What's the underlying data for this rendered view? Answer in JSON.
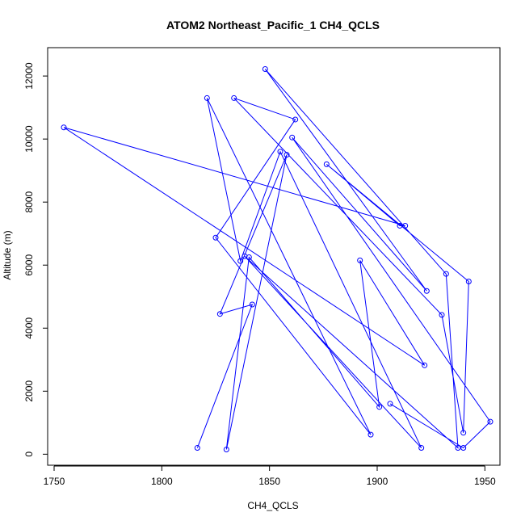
{
  "chart_data": {
    "type": "line",
    "title": "ATOM2 Northeast_Pacific_1 CH4_QCLS",
    "xlabel": "CH4_QCLS",
    "ylabel": "Altitude (m)",
    "xlim": [
      1747,
      1957
    ],
    "ylim": [
      -350,
      12900
    ],
    "xticks": [
      1750,
      1800,
      1850,
      1900,
      1950
    ],
    "yticks": [
      0,
      2000,
      4000,
      6000,
      8000,
      10000,
      12000
    ],
    "grid": false,
    "color": "#0000ff",
    "x": [
      1816.5,
      1842,
      1827,
      1858,
      1830,
      1840.5,
      1901,
      1892,
      1922,
      1754.5,
      1913,
      1910.5,
      1876.5,
      1942.5,
      1940,
      1930,
      1833.5,
      1862,
      1825,
      1897,
      1821,
      1836.5,
      1855,
      1920.5,
      1838.5,
      1937.5,
      1932,
      1848,
      1923,
      1860.5,
      1952.5,
      1940,
      1906
    ],
    "y": [
      200,
      4750,
      4450,
      9500,
      150,
      6250,
      1500,
      6150,
      2820,
      10370,
      7250,
      7250,
      9200,
      5480,
      680,
      4420,
      11300,
      10620,
      6870,
      620,
      11300,
      6130,
      9600,
      200,
      6280,
      200,
      5720,
      12220,
      5180,
      10050,
      1030,
      200,
      1600
    ]
  }
}
